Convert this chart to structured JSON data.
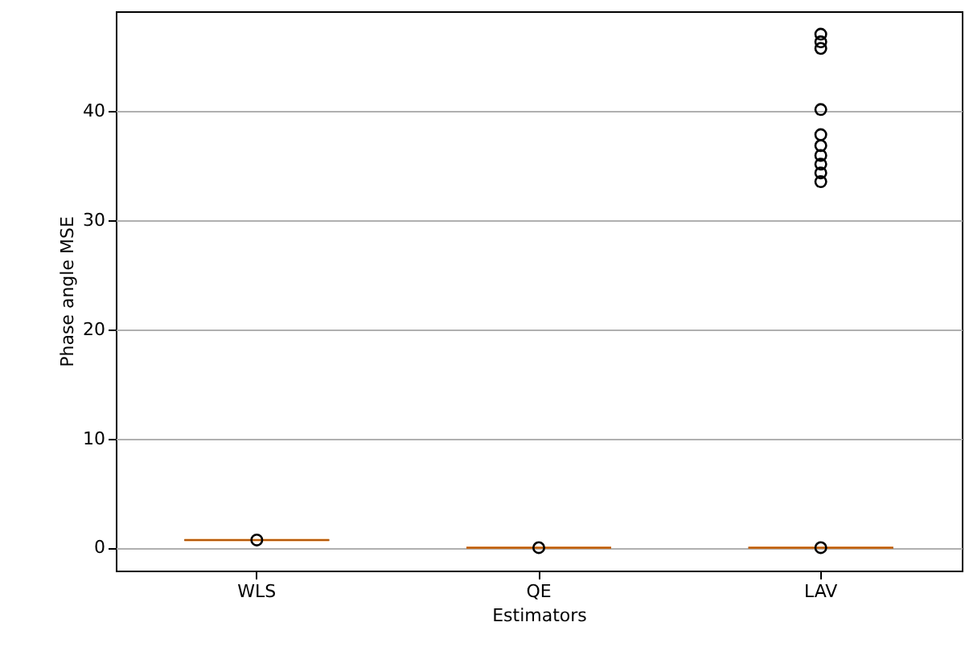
{
  "chart_data": {
    "type": "box",
    "xlabel": "Estimators",
    "ylabel": "Phase angle MSE",
    "categories": [
      "WLS",
      "QE",
      "LAV"
    ],
    "boxes": [
      {
        "low": 0.7,
        "q1": 0.7,
        "median": 0.7,
        "q3": 0.7,
        "high": 0.7,
        "outliers": [
          0.7
        ]
      },
      {
        "low": 0,
        "q1": 0,
        "median": 0,
        "q3": 0,
        "high": 0,
        "outliers": [
          0
        ]
      },
      {
        "low": 0,
        "q1": 0,
        "median": 0,
        "q3": 0,
        "high": 0,
        "outliers": [
          0,
          33.5,
          34.3,
          35.1,
          35.9,
          36.8,
          37.8,
          40.1,
          45.7,
          46.3,
          47.0
        ]
      }
    ],
    "ylim": [
      -2.1,
      49.1
    ],
    "yticks": [
      0,
      10,
      20,
      30,
      40
    ],
    "grid": "y",
    "marker": "circle"
  }
}
